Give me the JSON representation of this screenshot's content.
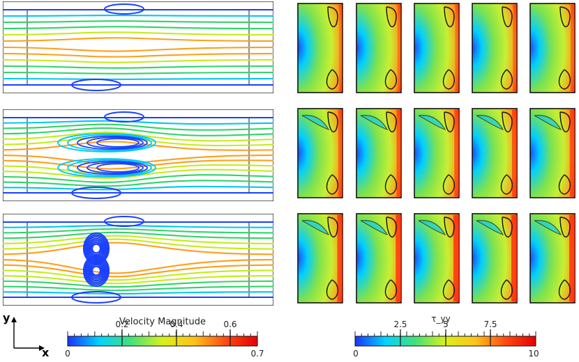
{
  "axes": {
    "y": "y",
    "x": "x"
  },
  "velocity_colorbar": {
    "title": "Velocity Magnitude",
    "min_label": "0",
    "max_label": "0.7",
    "ticks": [
      "0.2",
      "0.4",
      "0.6"
    ],
    "range": [
      0,
      0.7
    ],
    "colors": [
      "#1a33ff",
      "#00d4ff",
      "#44e07a",
      "#d8f21a",
      "#ffc21a",
      "#ff4a12",
      "#e50000"
    ]
  },
  "stress_colorbar": {
    "title": "τ_yy",
    "min_label": "0",
    "max_label": "10",
    "ticks": [
      "2.5",
      "5",
      "7.5"
    ],
    "range": [
      0,
      10
    ],
    "colors": [
      "#1a33ff",
      "#00d4ff",
      "#44e07a",
      "#d8f21a",
      "#ffc21a",
      "#ff4a12",
      "#e50000"
    ]
  },
  "streamline_colors": {
    "low": "#1a40ff",
    "mid_low": "#00c8f0",
    "mid": "#31d46a",
    "mid_high": "#c4ec1a",
    "high": "#ff9d1a"
  },
  "field_colors": {
    "background": "#c8ef32",
    "green": "#7ee24e",
    "cyan": "#00cfff",
    "blue": "#1d4dff",
    "orange": "#ff9a1a",
    "red": "#ff2a10",
    "contour": "#111111"
  }
}
